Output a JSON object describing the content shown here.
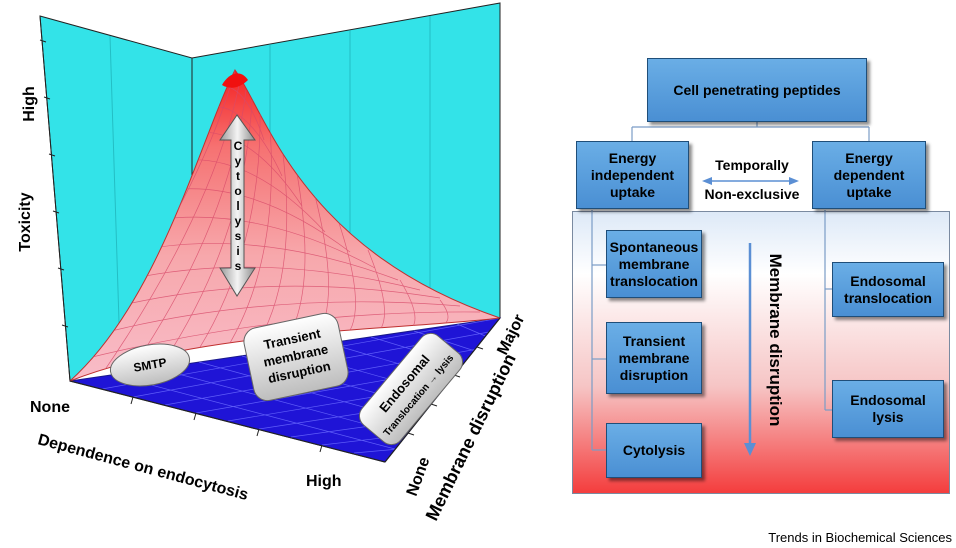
{
  "surface_plot": {
    "z_axis_label": "Toxicity",
    "z_axis_high": "High",
    "x_axis_label": "Dependence on endocytosis",
    "x_axis_none": "None",
    "x_axis_high": "High",
    "y_axis_label": "Membrane disruption",
    "y_axis_none": "None",
    "y_axis_major": "Major",
    "arrow_label_letters": [
      "C",
      "y",
      "t",
      "o",
      "l",
      "y",
      "s",
      "i",
      "s"
    ],
    "callouts": {
      "smtp": "SMTP",
      "transient_line1": "Transient",
      "transient_line2": "membrane",
      "transient_line3": "disruption",
      "endosomal_line1": "Endosomal",
      "endosomal_line2": "Translocation → lysis"
    },
    "colors": {
      "wall": "#33e3e8",
      "floor": "#1f14d6",
      "peak": "#f01010"
    }
  },
  "flowchart": {
    "root": "Cell penetrating peptides",
    "energy_independent": "Energy independent uptake",
    "energy_dependent": "Energy dependent uptake",
    "connector_top": "Temporally",
    "connector_bottom": "Non-exclusive",
    "independent_items": [
      "Spontaneous membrane translocation",
      "Transient membrane disruption",
      "Cytolysis"
    ],
    "dependent_items": [
      "Endosomal translocation",
      "Endosomal lysis"
    ],
    "gradient_label": "Membrane disruption",
    "colors": {
      "box_fill": "#5b9fe0",
      "box_border": "#1f4e79",
      "arrow": "#5b8fd4"
    }
  },
  "credit": "Trends in Biochemical Sciences"
}
